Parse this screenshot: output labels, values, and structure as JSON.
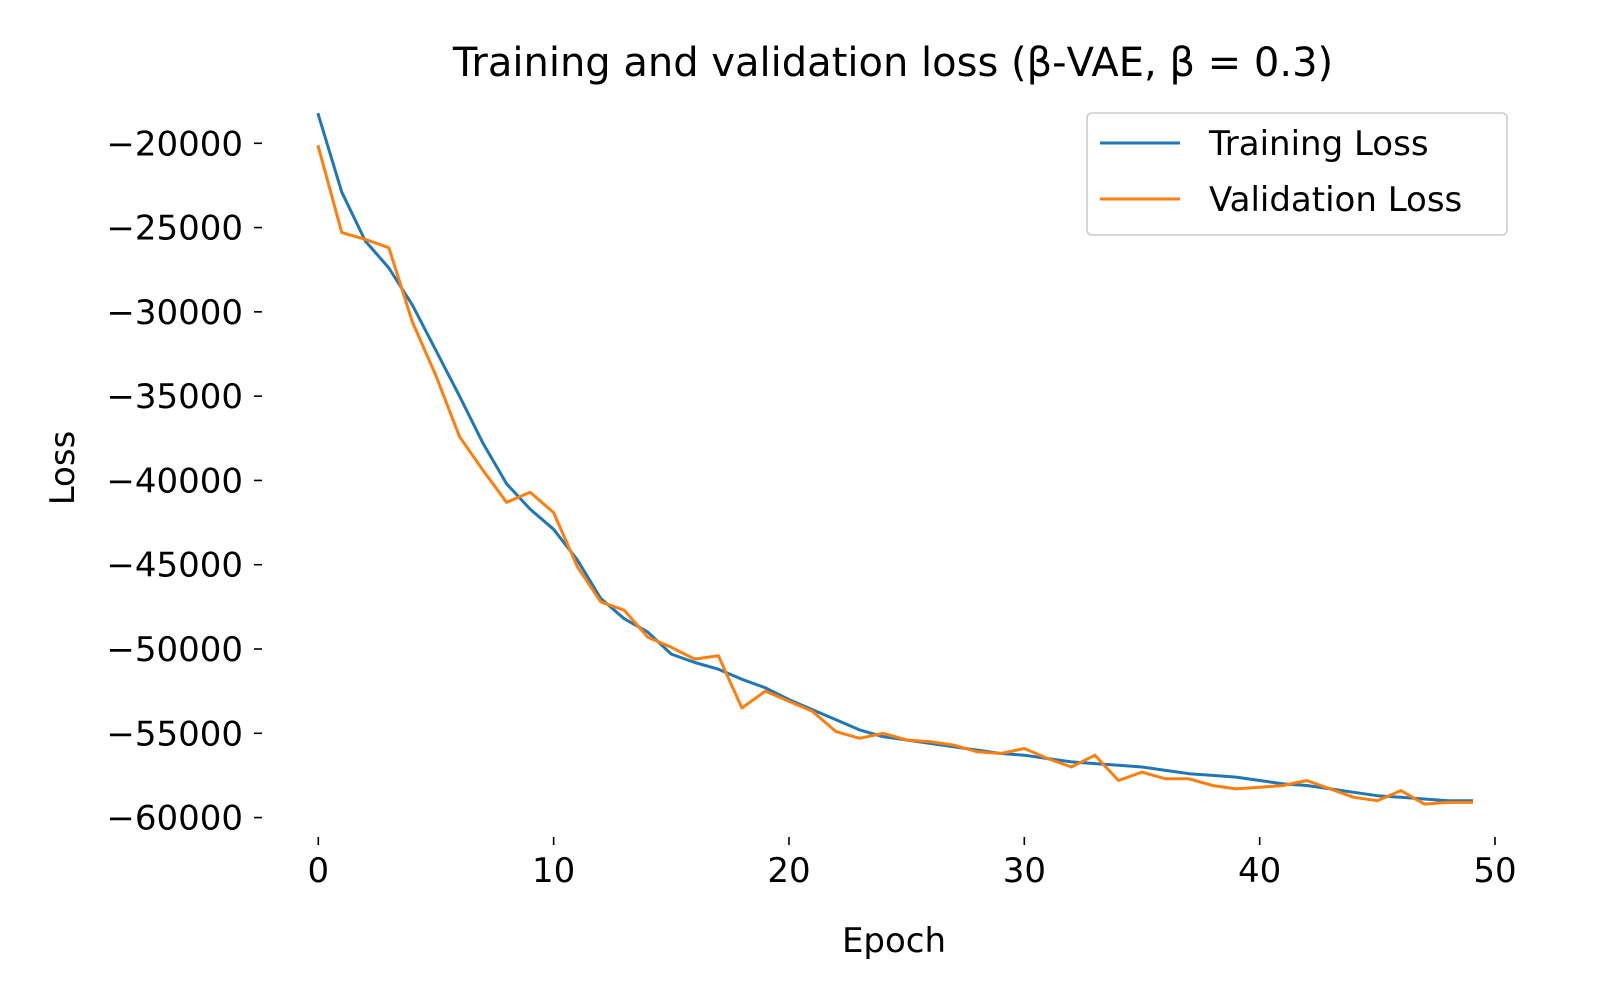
{
  "chart_data": {
    "type": "line",
    "title": "Training and validation loss (β-VAE, β = 0.3)",
    "xlabel": "Epoch",
    "ylabel": "Loss",
    "xlim": [
      -1.5,
      50
    ],
    "ylim": [
      -60500,
      -18500
    ],
    "xticks": [
      0,
      10,
      20,
      30,
      40,
      50
    ],
    "xtick_labels": [
      "0",
      "10",
      "20",
      "30",
      "40",
      "50"
    ],
    "yticks": [
      -20000,
      -25000,
      -30000,
      -35000,
      -40000,
      -45000,
      -50000,
      -55000,
      -60000
    ],
    "ytick_labels": [
      "−20000",
      "−25000",
      "−30000",
      "−35000",
      "−40000",
      "−45000",
      "−50000",
      "−55000",
      "−60000"
    ],
    "grid": false,
    "legend_position": "top-right",
    "x": [
      0,
      1,
      2,
      3,
      4,
      5,
      6,
      7,
      8,
      9,
      10,
      11,
      12,
      13,
      14,
      15,
      16,
      17,
      18,
      19,
      20,
      21,
      22,
      23,
      24,
      25,
      26,
      27,
      28,
      29,
      30,
      31,
      32,
      33,
      34,
      35,
      36,
      37,
      38,
      39,
      40,
      41,
      42,
      43,
      44,
      45,
      46,
      47,
      48,
      49
    ],
    "series": [
      {
        "name": "Training Loss",
        "color": "#1f77b4",
        "values": [
          -18300,
          -22900,
          -25800,
          -27400,
          -29600,
          -32300,
          -35000,
          -37800,
          -40200,
          -41700,
          -42900,
          -44700,
          -47000,
          -48200,
          -49000,
          -50300,
          -50800,
          -51200,
          -51800,
          -52300,
          -53000,
          -53600,
          -54200,
          -54800,
          -55200,
          -55400,
          -55600,
          -55800,
          -56000,
          -56200,
          -56300,
          -56500,
          -56700,
          -56800,
          -56900,
          -57000,
          -57200,
          -57400,
          -57500,
          -57600,
          -57800,
          -58000,
          -58100,
          -58300,
          -58500,
          -58700,
          -58800,
          -58900,
          -59000,
          -59000
        ]
      },
      {
        "name": "Validation Loss",
        "color": "#ff7f0e",
        "values": [
          -20200,
          -25300,
          -25700,
          -26200,
          -30600,
          -33800,
          -37400,
          -39400,
          -41300,
          -40700,
          -41900,
          -45100,
          -47200,
          -47700,
          -49300,
          -49900,
          -50600,
          -50400,
          -53500,
          -52500,
          -53100,
          -53700,
          -54900,
          -55300,
          -55000,
          -55400,
          -55500,
          -55700,
          -56100,
          -56200,
          -55900,
          -56500,
          -57000,
          -56300,
          -57800,
          -57300,
          -57700,
          -57700,
          -58100,
          -58300,
          -58200,
          -58100,
          -57800,
          -58300,
          -58800,
          -59000,
          -58400,
          -59200,
          -59100,
          -59100
        ]
      }
    ]
  }
}
